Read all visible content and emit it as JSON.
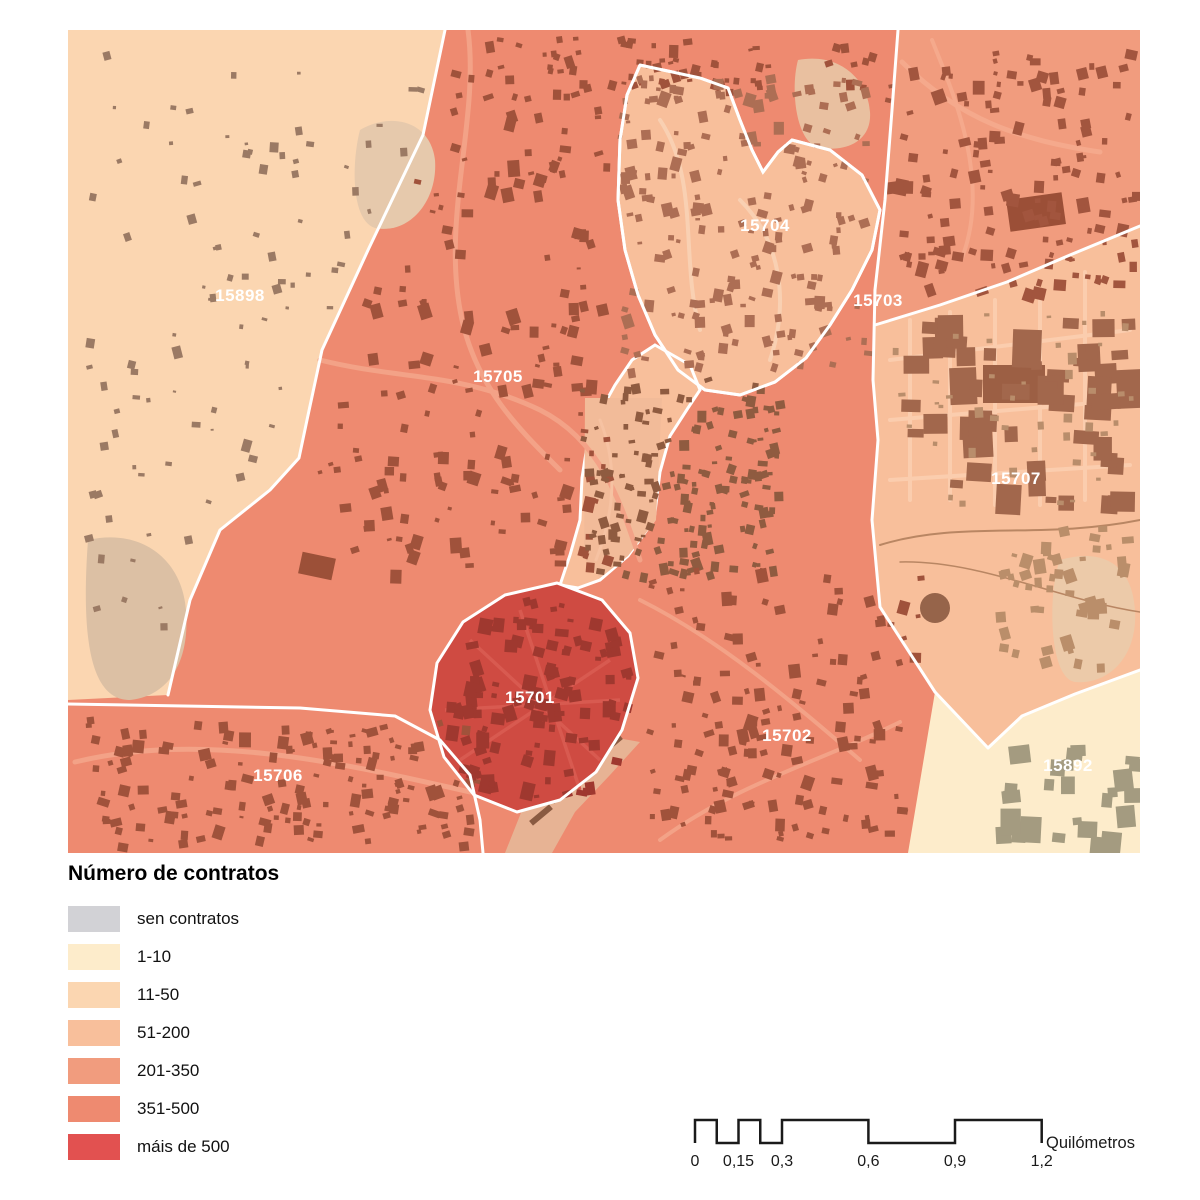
{
  "map": {
    "fill_15701": "#cf4b42",
    "labels": [
      {
        "text": "15898"
      },
      {
        "text": "15704"
      },
      {
        "text": "15703"
      },
      {
        "text": "15705"
      },
      {
        "text": "15707"
      },
      {
        "text": "15701"
      },
      {
        "text": "15702"
      },
      {
        "text": "15706"
      },
      {
        "text": "15892"
      }
    ]
  },
  "legend": {
    "title": "Número de contratos",
    "items": [
      {
        "label": "sen contratos",
        "color": "#d2d2d6"
      },
      {
        "label": "1-10",
        "color": "#fdeccb"
      },
      {
        "label": "11-50",
        "color": "#fbd6b1"
      },
      {
        "label": "51-200",
        "color": "#f8bf9b"
      },
      {
        "label": "201-350",
        "color": "#f19c7e"
      },
      {
        "label": "351-500",
        "color": "#ee8a70"
      },
      {
        "label": "máis de 500",
        "color": "#e25150"
      }
    ]
  },
  "scalebar": {
    "ticks": [
      "0",
      "0,15",
      "0,3",
      "0,6",
      "0,9",
      "1,2"
    ],
    "unit": "Quilómetros"
  }
}
